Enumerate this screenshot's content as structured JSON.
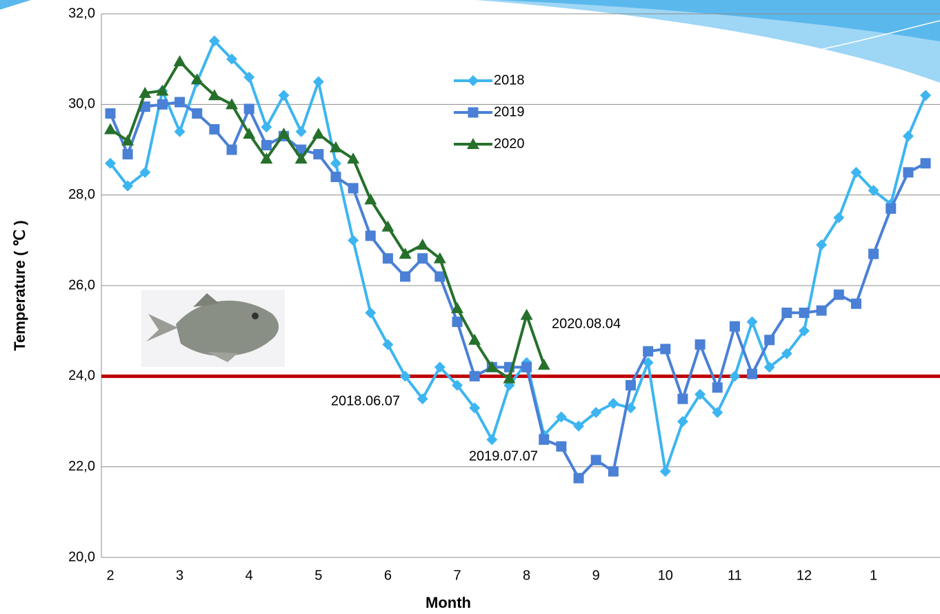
{
  "chart_data": {
    "type": "line",
    "x_label": "Month",
    "y_label": "Temperature ( ℃ )",
    "categories": [
      "2",
      null,
      null,
      null,
      "3",
      null,
      null,
      null,
      "4",
      null,
      null,
      null,
      "5",
      null,
      null,
      null,
      "6",
      null,
      null,
      null,
      "7",
      null,
      null,
      null,
      "8",
      null,
      null,
      null,
      "9",
      null,
      null,
      null,
      "10",
      null,
      null,
      null,
      "11",
      null,
      null,
      null,
      "12",
      null,
      null,
      null,
      "1",
      null,
      null,
      null
    ],
    "ylim": [
      20,
      32
    ],
    "yticks": [
      {
        "value": 20,
        "label": "20,0"
      },
      {
        "value": 22,
        "label": "22,0"
      },
      {
        "value": 24,
        "label": "24,0"
      },
      {
        "value": 26,
        "label": "26,0"
      },
      {
        "value": 28,
        "label": "28,0"
      },
      {
        "value": 30,
        "label": "30,0"
      },
      {
        "value": 32,
        "label": "32,0"
      }
    ],
    "grid": true,
    "legend": "upper center",
    "reference_line": {
      "value": 24,
      "color": "#c00000"
    },
    "series": [
      {
        "name": "2018",
        "color": "#3db5f0",
        "marker": "diamond",
        "values": [
          28.7,
          28.2,
          28.5,
          30.3,
          29.4,
          30.5,
          31.4,
          31.0,
          30.6,
          29.5,
          30.2,
          29.4,
          30.5,
          28.7,
          27.0,
          25.4,
          24.7,
          24.0,
          23.5,
          24.2,
          23.8,
          23.3,
          22.6,
          23.8,
          24.3,
          22.7,
          23.1,
          22.9,
          23.2,
          23.4,
          23.3,
          24.3,
          21.9,
          23.0,
          23.6,
          23.2,
          24.0,
          25.2,
          24.2,
          24.5,
          25.0,
          26.9,
          27.5,
          28.5,
          28.1,
          27.8,
          29.3,
          30.2
        ]
      },
      {
        "name": "2019",
        "color": "#4a80d6",
        "marker": "square",
        "values": [
          29.8,
          28.9,
          29.95,
          30.0,
          30.05,
          29.8,
          29.45,
          29.0,
          29.9,
          29.1,
          29.3,
          29.0,
          28.9,
          28.4,
          28.15,
          27.1,
          26.6,
          26.2,
          26.6,
          26.2,
          25.2,
          24.0,
          24.2,
          24.2,
          24.2,
          22.6,
          22.45,
          21.75,
          22.15,
          21.9,
          23.8,
          24.55,
          24.6,
          23.5,
          24.7,
          23.75,
          25.1,
          24.05,
          24.8,
          25.4,
          25.4,
          25.45,
          25.8,
          25.6,
          26.7,
          27.7,
          28.5,
          28.7
        ]
      },
      {
        "name": "2020",
        "color": "#26702c",
        "marker": "triangle",
        "values": [
          29.45,
          29.2,
          30.25,
          30.3,
          30.95,
          30.55,
          30.2,
          30.0,
          29.35,
          28.8,
          29.35,
          28.8,
          29.35,
          29.05,
          28.8,
          27.9,
          27.3,
          26.7,
          26.9,
          26.6,
          25.5,
          24.8,
          24.2,
          23.95,
          25.35,
          24.25,
          null,
          null,
          null,
          null,
          null,
          null,
          null,
          null,
          null,
          null,
          null,
          null,
          null,
          null,
          null,
          null,
          null,
          null,
          null,
          null,
          null,
          null
        ]
      }
    ],
    "annotations": [
      {
        "text": "2020.08.04",
        "index": 24
      },
      {
        "text": "2018.06.07",
        "index": 17
      },
      {
        "text": "2019.07.07",
        "index": 22
      }
    ]
  }
}
